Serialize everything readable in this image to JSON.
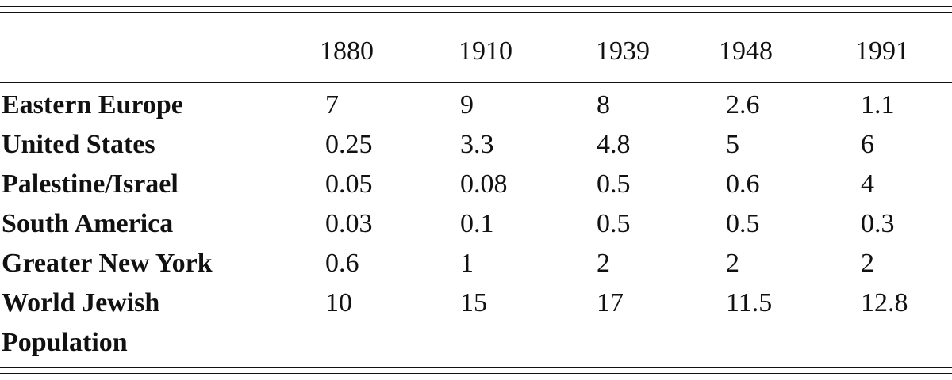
{
  "table": {
    "columns": [
      "1880",
      "1910",
      "1939",
      "1948",
      "1991"
    ],
    "rows": [
      {
        "label": "Eastern Europe",
        "cells": [
          "7",
          "9",
          "8",
          "2.6",
          "1.1"
        ]
      },
      {
        "label": "United States",
        "cells": [
          "0.25",
          "3.3",
          "4.8",
          "5",
          "6"
        ]
      },
      {
        "label": "Palestine/Israel",
        "cells": [
          "0.05",
          "0.08",
          "0.5",
          "0.6",
          "4"
        ]
      },
      {
        "label": "South America",
        "cells": [
          "0.03",
          "0.1",
          "0.5",
          "0.5",
          "0.3"
        ]
      },
      {
        "label": "Greater New York",
        "cells": [
          "0.6",
          "1",
          "2",
          "2",
          "2"
        ]
      },
      {
        "label": "World Jewish Population",
        "cells": [
          "10",
          "15",
          "17",
          "11.5",
          "12.8"
        ]
      }
    ]
  }
}
